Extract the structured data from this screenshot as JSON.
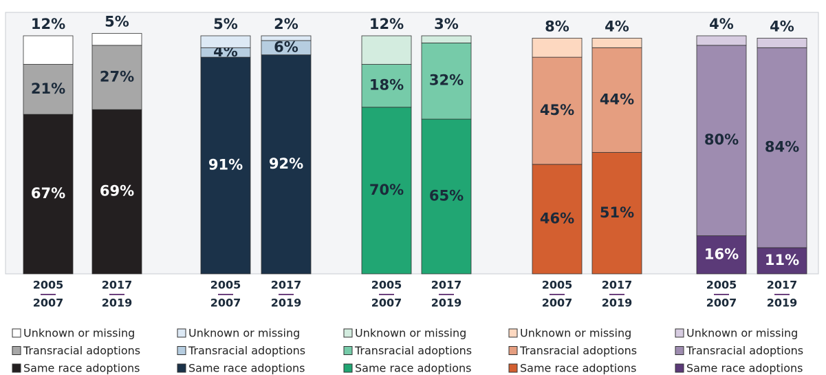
{
  "chart_data": [
    {
      "type": "bar",
      "stacked": true,
      "categories": [
        [
          "2005",
          "2007"
        ],
        [
          "2017",
          "2019"
        ]
      ],
      "ylim": [
        0,
        100
      ],
      "series": [
        {
          "name": "Same race adoptions",
          "color": "#231f20",
          "values": [
            67,
            69
          ],
          "value_labels": [
            "67%",
            "69%"
          ]
        },
        {
          "name": "Transracial adoptions",
          "color": "#a7a7a7",
          "values": [
            21,
            27
          ],
          "value_labels": [
            "21%",
            "27%"
          ]
        },
        {
          "name": "Unknown or missing",
          "color": "#ffffff",
          "values": [
            12,
            5
          ],
          "value_labels": [
            "12%",
            "5%"
          ]
        }
      ]
    },
    {
      "type": "bar",
      "stacked": true,
      "categories": [
        [
          "2005",
          "2007"
        ],
        [
          "2017",
          "2019"
        ]
      ],
      "ylim": [
        0,
        100
      ],
      "series": [
        {
          "name": "Same race adoptions",
          "color": "#1b3249",
          "values": [
            91,
            92
          ],
          "value_labels": [
            "91%",
            "92%"
          ]
        },
        {
          "name": "Transracial adoptions",
          "color": "#b6cde0",
          "values": [
            4,
            6
          ],
          "value_labels": [
            "4%",
            "6%"
          ]
        },
        {
          "name": "Unknown or missing",
          "color": "#dde9f5",
          "values": [
            5,
            2
          ],
          "value_labels": [
            "5%",
            "2%"
          ]
        }
      ]
    },
    {
      "type": "bar",
      "stacked": true,
      "categories": [
        [
          "2005",
          "2007"
        ],
        [
          "2017",
          "2019"
        ]
      ],
      "ylim": [
        0,
        100
      ],
      "series": [
        {
          "name": "Same race adoptions",
          "color": "#21a673",
          "values": [
            70,
            65
          ],
          "value_labels": [
            "70%",
            "65%"
          ]
        },
        {
          "name": "Transracial adoptions",
          "color": "#76cba9",
          "values": [
            18,
            32
          ],
          "value_labels": [
            "18%",
            "32%"
          ]
        },
        {
          "name": "Unknown or missing",
          "color": "#d3ecdf",
          "values": [
            12,
            3
          ],
          "value_labels": [
            "12%",
            "3%"
          ]
        }
      ]
    },
    {
      "type": "bar",
      "stacked": true,
      "categories": [
        [
          "2005",
          "2007"
        ],
        [
          "2017",
          "2019"
        ]
      ],
      "ylim": [
        0,
        100
      ],
      "series": [
        {
          "name": "Same race adoptions",
          "color": "#d35f30",
          "values": [
            46,
            51
          ],
          "value_labels": [
            "46%",
            "51%"
          ]
        },
        {
          "name": "Transracial adoptions",
          "color": "#e59e80",
          "values": [
            45,
            44
          ],
          "value_labels": [
            "45%",
            "44%"
          ]
        },
        {
          "name": "Unknown or missing",
          "color": "#fdd8c0",
          "values": [
            8,
            4
          ],
          "value_labels": [
            "8%",
            "4%"
          ]
        }
      ]
    },
    {
      "type": "bar",
      "stacked": true,
      "categories": [
        [
          "2005",
          "2007"
        ],
        [
          "2017",
          "2019"
        ]
      ],
      "ylim": [
        0,
        100
      ],
      "series": [
        {
          "name": "Same race adoptions",
          "color": "#5b3a78",
          "values": [
            16,
            11
          ],
          "value_labels": [
            "16%",
            "11%"
          ]
        },
        {
          "name": "Transracial adoptions",
          "color": "#9e8cb0",
          "values": [
            80,
            84
          ],
          "value_labels": [
            "80%",
            "84%"
          ]
        },
        {
          "name": "Unknown or missing",
          "color": "#d7cce1",
          "values": [
            4,
            4
          ],
          "value_labels": [
            "4%",
            "4%"
          ]
        }
      ]
    }
  ]
}
